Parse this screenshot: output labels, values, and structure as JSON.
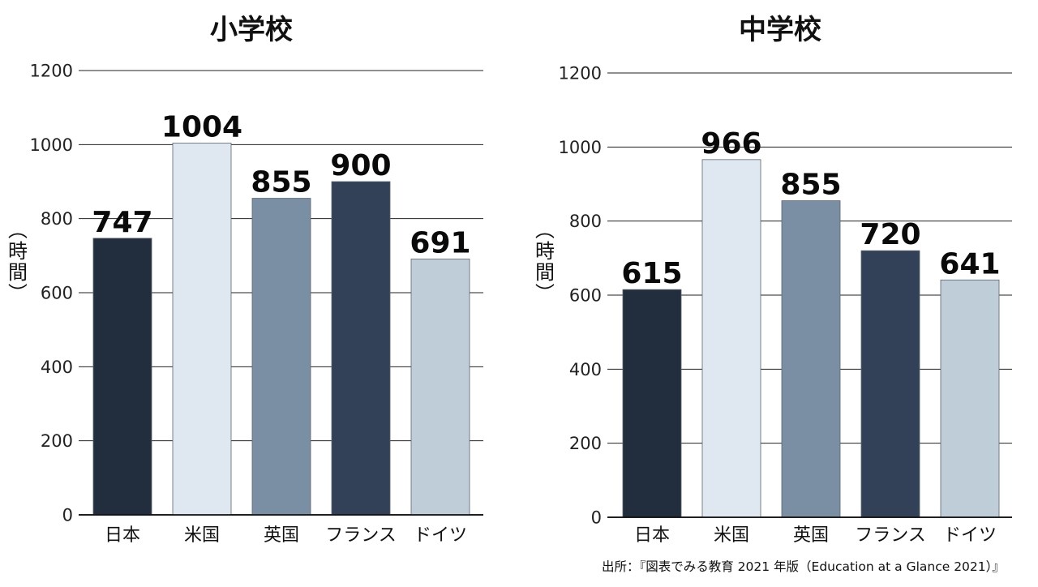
{
  "chart_data": [
    {
      "type": "bar",
      "title": "小学校",
      "ylabel": "（時間）",
      "categories": [
        "日本",
        "米国",
        "英国",
        "フランス",
        "ドイツ"
      ],
      "values": [
        747,
        1004,
        855,
        900,
        691
      ],
      "colors": [
        "#222d3e",
        "#dfe8f1",
        "#7a8fa3",
        "#324158",
        "#bfcdd8"
      ],
      "ylim": [
        0,
        1200
      ],
      "yticks": [
        0,
        200,
        400,
        600,
        800,
        1000,
        1200
      ],
      "grid": true
    },
    {
      "type": "bar",
      "title": "中学校",
      "ylabel": "（時間）",
      "categories": [
        "日本",
        "米国",
        "英国",
        "フランス",
        "ドイツ"
      ],
      "values": [
        615,
        966,
        855,
        720,
        641
      ],
      "colors": [
        "#222d3e",
        "#dfe8f1",
        "#7a8fa3",
        "#324158",
        "#bfcdd8"
      ],
      "ylim": [
        0,
        1200
      ],
      "yticks": [
        0,
        200,
        400,
        600,
        800,
        1000,
        1200
      ],
      "grid": true
    }
  ],
  "source": "出所：『図表でみる教育 2021 年版（Education at a Glance 2021）』"
}
